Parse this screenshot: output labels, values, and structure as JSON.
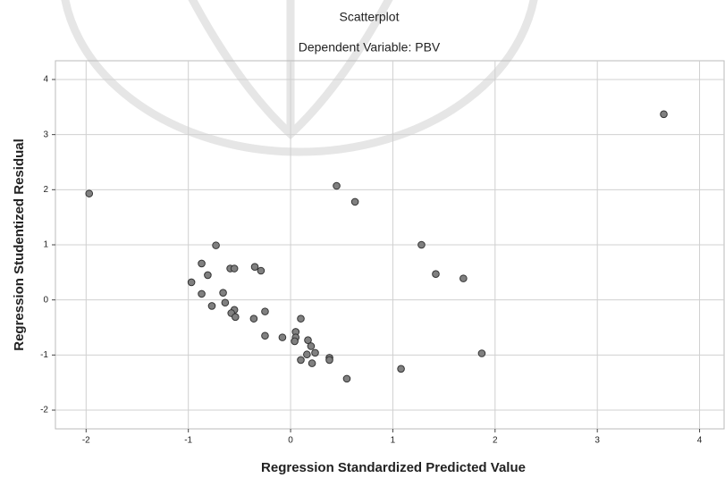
{
  "chart_data": {
    "type": "scatter",
    "title": "Scatterplot",
    "subtitle": "Dependent Variable: PBV",
    "x_label": "Regression Standardized Predicted Value",
    "y_label": "Regression Studentized Residual",
    "x": [
      -1.97,
      3.65,
      0.45,
      0.63,
      -0.73,
      1.28,
      -0.87,
      -0.81,
      -0.59,
      -0.55,
      -0.35,
      -0.29,
      1.42,
      1.69,
      -0.97,
      -0.87,
      -0.66,
      -0.64,
      -0.77,
      -0.55,
      -0.58,
      -0.54,
      -0.25,
      -0.36,
      0.1,
      0.05,
      0.05,
      0.04,
      -0.25,
      -0.08,
      0.17,
      0.2,
      0.24,
      0.16,
      0.38,
      0.38,
      0.1,
      0.21,
      1.87,
      1.08,
      0.55
    ],
    "y": [
      1.93,
      3.37,
      2.07,
      1.78,
      0.99,
      1.0,
      0.66,
      0.45,
      0.57,
      0.57,
      0.6,
      0.53,
      0.47,
      0.39,
      0.32,
      0.11,
      0.13,
      -0.05,
      -0.11,
      -0.18,
      -0.24,
      -0.31,
      -0.21,
      -0.34,
      -0.34,
      -0.58,
      -0.68,
      -0.75,
      -0.65,
      -0.68,
      -0.73,
      -0.84,
      -0.96,
      -0.99,
      -1.05,
      -1.09,
      -1.09,
      -1.15,
      -0.97,
      -1.25,
      -1.43
    ],
    "color": "#808080",
    "xlim": [
      -2.3,
      4.24
    ],
    "ylim": [
      -2.34,
      4.34
    ],
    "xticks": [
      -2,
      -1,
      0,
      1,
      2,
      3,
      4
    ],
    "yticks": [
      -2,
      -1,
      0,
      1,
      2,
      3,
      4
    ],
    "grid": true
  }
}
